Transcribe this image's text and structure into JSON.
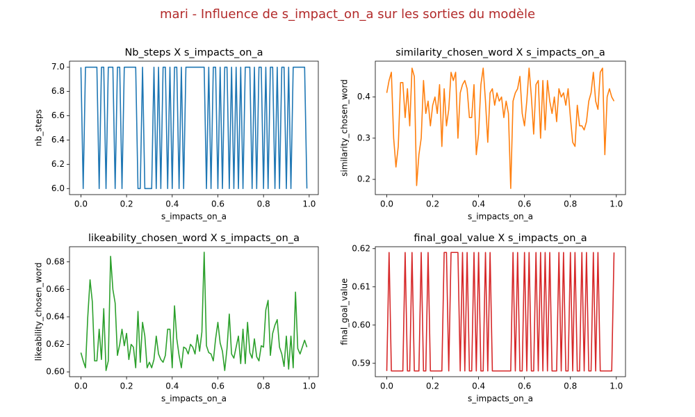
{
  "title": "mari - Influence de s_impact_on_a sur les sorties du modèle",
  "chart_data": [
    {
      "type": "line",
      "title": "Nb_steps X s_impacts_on_a",
      "xlabel": "s_impacts_on_a",
      "ylabel": "nb_steps",
      "x": [
        0,
        0.01,
        0.02,
        0.03,
        0.04,
        0.05,
        0.06,
        0.07,
        0.08,
        0.09,
        0.1,
        0.11,
        0.12,
        0.13,
        0.14,
        0.15,
        0.16,
        0.17,
        0.18,
        0.19,
        0.2,
        0.21,
        0.22,
        0.23,
        0.24,
        0.25,
        0.26,
        0.27,
        0.28,
        0.29,
        0.3,
        0.31,
        0.32,
        0.33,
        0.34,
        0.35,
        0.36,
        0.37,
        0.38,
        0.39,
        0.4,
        0.41,
        0.42,
        0.43,
        0.44,
        0.45,
        0.46,
        0.47,
        0.48,
        0.49,
        0.5,
        0.51,
        0.52,
        0.53,
        0.54,
        0.55,
        0.56,
        0.57,
        0.58,
        0.59,
        0.6,
        0.61,
        0.62,
        0.63,
        0.64,
        0.65,
        0.66,
        0.67,
        0.68,
        0.69,
        0.7,
        0.71,
        0.72,
        0.73,
        0.74,
        0.75,
        0.76,
        0.77,
        0.78,
        0.79,
        0.8,
        0.81,
        0.82,
        0.83,
        0.84,
        0.85,
        0.86,
        0.87,
        0.88,
        0.89,
        0.9,
        0.91,
        0.92,
        0.93,
        0.94,
        0.95,
        0.96,
        0.97,
        0.98,
        0.99
      ],
      "values": [
        7,
        6,
        7,
        7,
        7,
        7,
        7,
        7,
        6,
        7,
        7,
        6,
        7,
        7,
        7,
        6,
        7,
        7,
        6,
        7,
        7,
        7,
        7,
        7,
        7,
        6,
        6,
        7,
        6,
        6,
        6,
        6,
        7,
        6,
        7,
        6,
        7,
        7,
        6,
        7,
        6,
        7,
        7,
        6,
        7,
        6,
        7,
        7,
        7,
        7,
        7,
        7,
        7,
        7,
        7,
        6,
        7,
        6,
        7,
        7,
        6,
        7,
        6,
        7,
        7,
        6,
        7,
        6,
        7,
        6,
        7,
        6,
        7,
        7,
        7,
        6,
        7,
        6,
        7,
        7,
        6,
        7,
        6,
        7,
        7,
        6,
        7,
        6,
        7,
        7,
        6,
        7,
        6,
        7,
        7,
        7,
        7,
        7,
        7,
        6
      ],
      "color": "#1f77b4",
      "xlim": [
        -0.05,
        1.04
      ],
      "ylim": [
        5.95,
        7.05
      ],
      "xticks": [
        {
          "value": 0,
          "label": "0.0"
        },
        0.2,
        0.4,
        0.6,
        0.8,
        {
          "value": 1,
          "label": "1.0"
        }
      ],
      "yticks": [
        {
          "value": 6,
          "label": "6.0"
        },
        6.2,
        6.4,
        6.6,
        6.8,
        {
          "value": 7,
          "label": "7.0"
        }
      ]
    },
    {
      "type": "line",
      "title": "similarity_chosen_word X s_impacts_on_a",
      "xlabel": "s_impacts_on_a",
      "ylabel": "similarity_chosen_word",
      "x": [
        0,
        0.01,
        0.02,
        0.03,
        0.04,
        0.05,
        0.06,
        0.07,
        0.08,
        0.09,
        0.1,
        0.11,
        0.12,
        0.13,
        0.14,
        0.15,
        0.16,
        0.17,
        0.18,
        0.19,
        0.2,
        0.21,
        0.22,
        0.23,
        0.24,
        0.25,
        0.26,
        0.27,
        0.28,
        0.29,
        0.3,
        0.31,
        0.32,
        0.33,
        0.34,
        0.35,
        0.36,
        0.37,
        0.38,
        0.39,
        0.4,
        0.41,
        0.42,
        0.43,
        0.44,
        0.45,
        0.46,
        0.47,
        0.48,
        0.49,
        0.5,
        0.51,
        0.52,
        0.53,
        0.54,
        0.55,
        0.56,
        0.57,
        0.58,
        0.59,
        0.6,
        0.61,
        0.62,
        0.63,
        0.64,
        0.65,
        0.66,
        0.67,
        0.68,
        0.69,
        0.7,
        0.71,
        0.72,
        0.73,
        0.74,
        0.75,
        0.76,
        0.77,
        0.78,
        0.79,
        0.8,
        0.81,
        0.82,
        0.83,
        0.84,
        0.85,
        0.86,
        0.87,
        0.88,
        0.89,
        0.9,
        0.91,
        0.92,
        0.93,
        0.94,
        0.95,
        0.96,
        0.97,
        0.98,
        0.99
      ],
      "values": [
        0.41,
        0.44,
        0.46,
        0.3,
        0.23,
        0.28,
        0.435,
        0.435,
        0.35,
        0.42,
        0.33,
        0.47,
        0.45,
        0.185,
        0.26,
        0.3,
        0.44,
        0.36,
        0.39,
        0.33,
        0.38,
        0.4,
        0.36,
        0.43,
        0.28,
        0.42,
        0.33,
        0.37,
        0.46,
        0.44,
        0.46,
        0.3,
        0.41,
        0.43,
        0.44,
        0.42,
        0.35,
        0.35,
        0.43,
        0.26,
        0.31,
        0.43,
        0.47,
        0.39,
        0.29,
        0.41,
        0.42,
        0.38,
        0.41,
        0.39,
        0.4,
        0.35,
        0.39,
        0.36,
        0.178,
        0.39,
        0.41,
        0.42,
        0.45,
        0.36,
        0.33,
        0.39,
        0.47,
        0.4,
        0.31,
        0.43,
        0.44,
        0.3,
        0.44,
        0.32,
        0.44,
        0.39,
        0.36,
        0.4,
        0.34,
        0.42,
        0.4,
        0.41,
        0.38,
        0.42,
        0.35,
        0.29,
        0.28,
        0.38,
        0.33,
        0.33,
        0.32,
        0.34,
        0.39,
        0.41,
        0.46,
        0.39,
        0.37,
        0.46,
        0.47,
        0.26,
        0.4,
        0.42,
        0.4,
        0.39
      ],
      "color": "#ff7f0e",
      "xlim": [
        -0.05,
        1.04
      ],
      "ylim": [
        0.163,
        0.487
      ],
      "xticks": [
        {
          "value": 0,
          "label": "0.0"
        },
        0.2,
        0.4,
        0.6,
        0.8,
        {
          "value": 1,
          "label": "1.0"
        }
      ],
      "yticks": [
        0.2,
        0.3,
        0.4
      ]
    },
    {
      "type": "line",
      "title": "likeability_chosen_word X s_impacts_on_a",
      "xlabel": "s_impacts_on_a",
      "ylabel": "likeability_chosen_word",
      "x": [
        0,
        0.01,
        0.02,
        0.03,
        0.04,
        0.05,
        0.06,
        0.07,
        0.08,
        0.09,
        0.1,
        0.11,
        0.12,
        0.13,
        0.14,
        0.15,
        0.16,
        0.17,
        0.18,
        0.19,
        0.2,
        0.21,
        0.22,
        0.23,
        0.24,
        0.25,
        0.26,
        0.27,
        0.28,
        0.29,
        0.3,
        0.31,
        0.32,
        0.33,
        0.34,
        0.35,
        0.36,
        0.37,
        0.38,
        0.39,
        0.4,
        0.41,
        0.42,
        0.43,
        0.44,
        0.45,
        0.46,
        0.47,
        0.48,
        0.49,
        0.5,
        0.51,
        0.52,
        0.53,
        0.54,
        0.55,
        0.56,
        0.57,
        0.58,
        0.59,
        0.6,
        0.61,
        0.62,
        0.63,
        0.64,
        0.65,
        0.66,
        0.67,
        0.68,
        0.69,
        0.7,
        0.71,
        0.72,
        0.73,
        0.74,
        0.75,
        0.76,
        0.77,
        0.78,
        0.79,
        0.8,
        0.81,
        0.82,
        0.83,
        0.84,
        0.85,
        0.86,
        0.87,
        0.88,
        0.89,
        0.9,
        0.91,
        0.92,
        0.93,
        0.94,
        0.95,
        0.96,
        0.97,
        0.98,
        0.99
      ],
      "values": [
        0.614,
        0.608,
        0.603,
        0.64,
        0.667,
        0.651,
        0.608,
        0.608,
        0.631,
        0.609,
        0.646,
        0.601,
        0.608,
        0.684,
        0.66,
        0.65,
        0.612,
        0.62,
        0.631,
        0.619,
        0.628,
        0.609,
        0.62,
        0.618,
        0.603,
        0.644,
        0.607,
        0.636,
        0.626,
        0.603,
        0.607,
        0.603,
        0.609,
        0.626,
        0.613,
        0.609,
        0.607,
        0.612,
        0.631,
        0.631,
        0.603,
        0.648,
        0.624,
        0.612,
        0.603,
        0.618,
        0.617,
        0.613,
        0.62,
        0.618,
        0.613,
        0.627,
        0.615,
        0.629,
        0.687,
        0.619,
        0.614,
        0.613,
        0.608,
        0.624,
        0.636,
        0.621,
        0.615,
        0.601,
        0.617,
        0.642,
        0.613,
        0.61,
        0.618,
        0.626,
        0.606,
        0.631,
        0.606,
        0.636,
        0.614,
        0.61,
        0.624,
        0.611,
        0.608,
        0.619,
        0.618,
        0.645,
        0.652,
        0.612,
        0.628,
        0.634,
        0.638,
        0.618,
        0.613,
        0.604,
        0.626,
        0.602,
        0.626,
        0.603,
        0.658,
        0.617,
        0.613,
        0.618,
        0.623,
        0.618
      ],
      "color": "#2ca02c",
      "xlim": [
        -0.05,
        1.04
      ],
      "ylim": [
        0.5965,
        0.691
      ],
      "xticks": [
        {
          "value": 0,
          "label": "0.0"
        },
        0.2,
        0.4,
        0.6,
        0.8,
        {
          "value": 1,
          "label": "1.0"
        }
      ],
      "yticks": [
        {
          "value": 0.6,
          "label": "0.60"
        },
        0.62,
        0.64,
        0.66,
        0.68
      ]
    },
    {
      "type": "line",
      "title": "final_goal_value X s_impacts_on_a",
      "xlabel": "s_impacts_on_a",
      "ylabel": "final_goal_value",
      "x": [
        0,
        0.01,
        0.02,
        0.03,
        0.04,
        0.05,
        0.06,
        0.07,
        0.08,
        0.09,
        0.1,
        0.11,
        0.12,
        0.13,
        0.14,
        0.15,
        0.16,
        0.17,
        0.18,
        0.19,
        0.2,
        0.21,
        0.22,
        0.23,
        0.24,
        0.25,
        0.26,
        0.27,
        0.28,
        0.29,
        0.3,
        0.31,
        0.32,
        0.33,
        0.34,
        0.35,
        0.36,
        0.37,
        0.38,
        0.39,
        0.4,
        0.41,
        0.42,
        0.43,
        0.44,
        0.45,
        0.46,
        0.47,
        0.48,
        0.49,
        0.5,
        0.51,
        0.52,
        0.53,
        0.54,
        0.55,
        0.56,
        0.57,
        0.58,
        0.59,
        0.6,
        0.61,
        0.62,
        0.63,
        0.64,
        0.65,
        0.66,
        0.67,
        0.68,
        0.69,
        0.7,
        0.71,
        0.72,
        0.73,
        0.74,
        0.75,
        0.76,
        0.77,
        0.78,
        0.79,
        0.8,
        0.81,
        0.82,
        0.83,
        0.84,
        0.85,
        0.86,
        0.87,
        0.88,
        0.89,
        0.9,
        0.91,
        0.92,
        0.93,
        0.94,
        0.95,
        0.96,
        0.97,
        0.98,
        0.99
      ],
      "values": [
        0.588,
        0.619,
        0.588,
        0.588,
        0.588,
        0.588,
        0.588,
        0.588,
        0.619,
        0.588,
        0.588,
        0.619,
        0.588,
        0.588,
        0.588,
        0.619,
        0.588,
        0.588,
        0.619,
        0.588,
        0.588,
        0.588,
        0.588,
        0.588,
        0.588,
        0.619,
        0.619,
        0.588,
        0.619,
        0.619,
        0.619,
        0.619,
        0.588,
        0.619,
        0.588,
        0.619,
        0.588,
        0.588,
        0.619,
        0.588,
        0.619,
        0.588,
        0.588,
        0.619,
        0.588,
        0.619,
        0.588,
        0.588,
        0.588,
        0.588,
        0.588,
        0.588,
        0.588,
        0.588,
        0.588,
        0.619,
        0.588,
        0.619,
        0.588,
        0.588,
        0.619,
        0.588,
        0.619,
        0.588,
        0.588,
        0.619,
        0.588,
        0.619,
        0.588,
        0.619,
        0.588,
        0.619,
        0.588,
        0.588,
        0.588,
        0.619,
        0.588,
        0.619,
        0.588,
        0.588,
        0.619,
        0.588,
        0.619,
        0.588,
        0.588,
        0.619,
        0.588,
        0.619,
        0.588,
        0.588,
        0.619,
        0.588,
        0.619,
        0.588,
        0.588,
        0.588,
        0.588,
        0.588,
        0.588,
        0.619
      ],
      "color": "#d62728",
      "xlim": [
        -0.05,
        1.04
      ],
      "ylim": [
        0.5865,
        0.6205
      ],
      "xticks": [
        {
          "value": 0,
          "label": "0.0"
        },
        0.2,
        0.4,
        0.6,
        0.8,
        {
          "value": 1,
          "label": "1.0"
        }
      ],
      "yticks": [
        0.59,
        {
          "value": 0.6,
          "label": "0.60"
        },
        0.61,
        0.62
      ]
    }
  ]
}
